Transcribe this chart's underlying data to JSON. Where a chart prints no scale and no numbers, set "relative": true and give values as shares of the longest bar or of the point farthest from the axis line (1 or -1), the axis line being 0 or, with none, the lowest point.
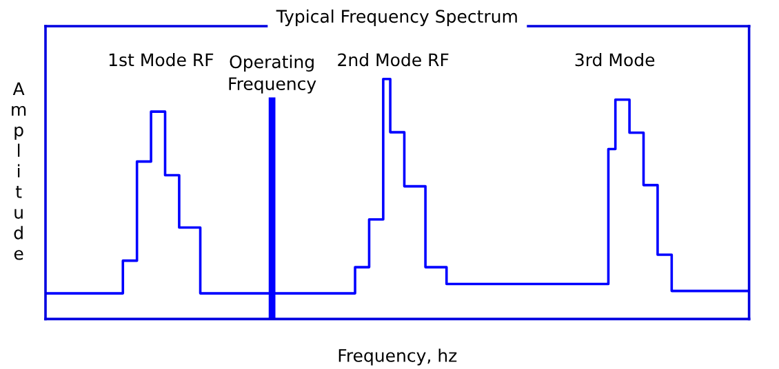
{
  "chart_data": {
    "type": "step",
    "title": "Typical Frequency Spectrum",
    "xlabel": "Frequency, hz",
    "ylabel": "Amplitude",
    "relative": true,
    "legend": false,
    "line_style": "solid",
    "categories": [
      null,
      null,
      null,
      null,
      null,
      null,
      null,
      null,
      null,
      null,
      null,
      null,
      null,
      null,
      null,
      null,
      null,
      null,
      null,
      null,
      null,
      null,
      null,
      null,
      null,
      null,
      null,
      null,
      null,
      null,
      null,
      null,
      null,
      null,
      null,
      null,
      null,
      null,
      null,
      null,
      null,
      null,
      null,
      null,
      null,
      null,
      null,
      null,
      null,
      null,
      null,
      null,
      null,
      null,
      null,
      null,
      null,
      null,
      null,
      null,
      null,
      null,
      null,
      null,
      null,
      null,
      null,
      null,
      null,
      null,
      null,
      null,
      null,
      null,
      null,
      null,
      null,
      null,
      null,
      null,
      null,
      null,
      null,
      null,
      null,
      null,
      null,
      null,
      null,
      null,
      null,
      null,
      null,
      null,
      null,
      null,
      null,
      null,
      null,
      null,
      null
    ],
    "series": [
      {
        "color": "#0000ff",
        "values": [
          0.107,
          0.107,
          0.107,
          0.107,
          0.107,
          0.107,
          0.107,
          0.107,
          0.107,
          0.107,
          0.107,
          0.243,
          0.243,
          0.656,
          0.656,
          0.864,
          0.864,
          0.599,
          0.599,
          0.381,
          0.381,
          0.381,
          0.107,
          0.107,
          0.107,
          0.107,
          0.107,
          0.107,
          0.107,
          0.107,
          0.107,
          0.107,
          0.107,
          0.107,
          0.107,
          0.107,
          0.107,
          0.107,
          0.107,
          0.107,
          0.107,
          0.107,
          0.107,
          0.107,
          0.216,
          0.216,
          0.415,
          0.415,
          1,
          0.778,
          0.778,
          0.553,
          0.553,
          0.553,
          0.216,
          0.216,
          0.216,
          0.146,
          0.146,
          0.146,
          0.146,
          0.146,
          0.146,
          0.146,
          0.146,
          0.146,
          0.146,
          0.146,
          0.146,
          0.146,
          0.146,
          0.146,
          0.146,
          0.146,
          0.146,
          0.146,
          0.146,
          0.146,
          0.146,
          0.146,
          0.708,
          0.914,
          0.914,
          0.776,
          0.776,
          0.558,
          0.558,
          0.268,
          0.268,
          0.117,
          0.117,
          0.117,
          0.117,
          0.117,
          0.117,
          0.117,
          0.117,
          0.117,
          0.117,
          0.117,
          0.117
        ]
      }
    ],
    "annotations": [
      "1st Mode RF",
      "Operating\nFrequency",
      "2nd Mode RF",
      "3rd Mode"
    ]
  }
}
